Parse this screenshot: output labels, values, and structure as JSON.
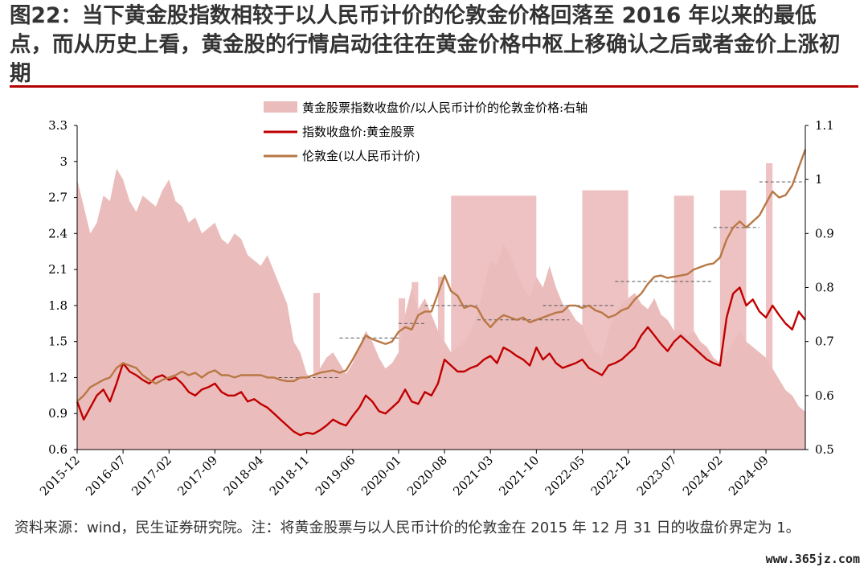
{
  "title": "图22：当下黄金股指数相较于以人民币计价的伦敦金价格回落至 2016 年以来的最低点，而从历史上看，黄金股的行情启动往往在黄金价格中枢上移确认之后或者金价上涨初期",
  "source_note": "资料来源：wind，民生证券研究院。注：将黄金股票与以人民币计价的伦敦金在 2015 年 12 月 31 日的收盘价界定为 1。",
  "watermark": "www.365jz.com",
  "colors": {
    "ratio_area": "#ebbcbc",
    "highlight": "#d97878",
    "index_line": "#c00000",
    "gold_line": "#b87845",
    "dashed": "#555555"
  },
  "chart_data": {
    "type": "line",
    "x_ticks": [
      "2015-12",
      "2016-07",
      "2017-02",
      "2017-09",
      "2018-04",
      "2018-11",
      "2019-06",
      "2020-01",
      "2020-08",
      "2021-03",
      "2021-10",
      "2022-05",
      "2022-12",
      "2023-07",
      "2024-02",
      "2024-09"
    ],
    "y_left": {
      "ticks": [
        "3.3",
        "3",
        "2.7",
        "2.4",
        "2.1",
        "1.8",
        "1.5",
        "1.2",
        "0.9",
        "0.6"
      ],
      "range": [
        0.6,
        3.3
      ]
    },
    "y_right": {
      "ticks": [
        "1.1",
        "1",
        "0.9",
        "0.8",
        "0.7",
        "0.6",
        "0.5"
      ],
      "range": [
        0.5,
        1.1
      ]
    },
    "legend": [
      "黄金股票指数收盘价/以人民币计价的伦敦金价格:右轴",
      "指数收盘价:黄金股票",
      "伦敦金(以人民币计价)"
    ],
    "series": [
      {
        "name": "黄金股票指数收盘价/以人民币计价的伦敦金价格:右轴",
        "axis": "right",
        "kind": "area",
        "x": [
          "2015-12",
          "2016-01",
          "2016-02",
          "2016-03",
          "2016-04",
          "2016-05",
          "2016-06",
          "2016-07",
          "2016-08",
          "2016-09",
          "2016-10",
          "2016-11",
          "2016-12",
          "2017-01",
          "2017-02",
          "2017-03",
          "2017-04",
          "2017-05",
          "2017-06",
          "2017-07",
          "2017-08",
          "2017-09",
          "2017-10",
          "2017-11",
          "2017-12",
          "2018-01",
          "2018-02",
          "2018-03",
          "2018-04",
          "2018-05",
          "2018-06",
          "2018-07",
          "2018-08",
          "2018-09",
          "2018-10",
          "2018-11",
          "2018-12",
          "2019-01",
          "2019-02",
          "2019-03",
          "2019-04",
          "2019-05",
          "2019-06",
          "2019-07",
          "2019-08",
          "2019-09",
          "2019-10",
          "2019-11",
          "2019-12",
          "2020-01",
          "2020-02",
          "2020-03",
          "2020-04",
          "2020-05",
          "2020-06",
          "2020-07",
          "2020-08",
          "2020-09",
          "2020-10",
          "2020-11",
          "2020-12",
          "2021-01",
          "2021-02",
          "2021-03",
          "2021-04",
          "2021-05",
          "2021-06",
          "2021-07",
          "2021-08",
          "2021-09",
          "2021-10",
          "2021-11",
          "2021-12",
          "2022-01",
          "2022-02",
          "2022-03",
          "2022-04",
          "2022-05",
          "2022-06",
          "2022-07",
          "2022-08",
          "2022-09",
          "2022-10",
          "2022-11",
          "2022-12",
          "2023-01",
          "2023-02",
          "2023-03",
          "2023-04",
          "2023-05",
          "2023-06",
          "2023-07",
          "2023-08",
          "2023-09",
          "2023-10",
          "2023-11",
          "2023-12",
          "2024-01",
          "2024-02",
          "2024-03",
          "2024-04",
          "2024-05",
          "2024-06",
          "2024-07",
          "2024-08",
          "2024-09",
          "2024-10",
          "2024-11",
          "2024-12",
          "2025-01",
          "2025-02",
          "2025-03"
        ],
        "values": [
          1.0,
          0.95,
          0.9,
          0.92,
          0.97,
          0.96,
          1.02,
          1.0,
          0.96,
          0.94,
          0.97,
          0.96,
          0.95,
          0.98,
          1.0,
          0.96,
          0.95,
          0.92,
          0.93,
          0.9,
          0.91,
          0.92,
          0.89,
          0.88,
          0.9,
          0.89,
          0.86,
          0.85,
          0.84,
          0.86,
          0.83,
          0.8,
          0.77,
          0.7,
          0.68,
          0.64,
          0.63,
          0.65,
          0.67,
          0.68,
          0.66,
          0.64,
          0.66,
          0.69,
          0.72,
          0.7,
          0.67,
          0.65,
          0.66,
          0.68,
          0.75,
          0.8,
          0.76,
          0.78,
          0.75,
          0.72,
          0.7,
          0.68,
          0.69,
          0.7,
          0.72,
          0.75,
          0.8,
          0.85,
          0.84,
          0.88,
          0.86,
          0.83,
          0.8,
          0.78,
          0.82,
          0.8,
          0.84,
          0.8,
          0.77,
          0.76,
          0.74,
          0.73,
          0.7,
          0.68,
          0.67,
          0.72,
          0.75,
          0.77,
          0.78,
          0.79,
          0.77,
          0.76,
          0.78,
          0.75,
          0.74,
          0.72,
          0.72,
          0.71,
          0.72,
          0.7,
          0.69,
          0.67,
          0.66,
          0.68,
          0.7,
          0.72,
          0.7,
          0.69,
          0.68,
          0.67,
          0.65,
          0.63,
          0.61,
          0.6,
          0.58,
          0.57
        ]
      },
      {
        "name": "指数收盘价:黄金股票",
        "axis": "left",
        "kind": "line",
        "x": [
          "2015-12",
          "2016-01",
          "2016-02",
          "2016-03",
          "2016-04",
          "2016-05",
          "2016-06",
          "2016-07",
          "2016-08",
          "2016-09",
          "2016-10",
          "2016-11",
          "2016-12",
          "2017-01",
          "2017-02",
          "2017-03",
          "2017-04",
          "2017-05",
          "2017-06",
          "2017-07",
          "2017-08",
          "2017-09",
          "2017-10",
          "2017-11",
          "2017-12",
          "2018-01",
          "2018-02",
          "2018-03",
          "2018-04",
          "2018-05",
          "2018-06",
          "2018-07",
          "2018-08",
          "2018-09",
          "2018-10",
          "2018-11",
          "2018-12",
          "2019-01",
          "2019-02",
          "2019-03",
          "2019-04",
          "2019-05",
          "2019-06",
          "2019-07",
          "2019-08",
          "2019-09",
          "2019-10",
          "2019-11",
          "2019-12",
          "2020-01",
          "2020-02",
          "2020-03",
          "2020-04",
          "2020-05",
          "2020-06",
          "2020-07",
          "2020-08",
          "2020-09",
          "2020-10",
          "2020-11",
          "2020-12",
          "2021-01",
          "2021-02",
          "2021-03",
          "2021-04",
          "2021-05",
          "2021-06",
          "2021-07",
          "2021-08",
          "2021-09",
          "2021-10",
          "2021-11",
          "2021-12",
          "2022-01",
          "2022-02",
          "2022-03",
          "2022-04",
          "2022-05",
          "2022-06",
          "2022-07",
          "2022-08",
          "2022-09",
          "2022-10",
          "2022-11",
          "2022-12",
          "2023-01",
          "2023-02",
          "2023-03",
          "2023-04",
          "2023-05",
          "2023-06",
          "2023-07",
          "2023-08",
          "2023-09",
          "2023-10",
          "2023-11",
          "2023-12",
          "2024-01",
          "2024-02",
          "2024-03",
          "2024-04",
          "2024-05",
          "2024-06",
          "2024-07",
          "2024-08",
          "2024-09",
          "2024-10",
          "2024-11",
          "2024-12",
          "2025-01",
          "2025-02",
          "2025-03"
        ],
        "values": [
          1.0,
          0.85,
          0.95,
          1.05,
          1.1,
          1.0,
          1.15,
          1.32,
          1.25,
          1.22,
          1.18,
          1.15,
          1.2,
          1.22,
          1.18,
          1.2,
          1.15,
          1.08,
          1.05,
          1.1,
          1.12,
          1.15,
          1.08,
          1.05,
          1.05,
          1.08,
          1.0,
          1.02,
          0.98,
          0.95,
          0.9,
          0.85,
          0.8,
          0.75,
          0.72,
          0.74,
          0.73,
          0.76,
          0.8,
          0.85,
          0.82,
          0.8,
          0.88,
          0.95,
          1.05,
          1.0,
          0.92,
          0.9,
          0.95,
          1.0,
          1.1,
          1.0,
          0.98,
          1.08,
          1.05,
          1.15,
          1.35,
          1.3,
          1.25,
          1.25,
          1.28,
          1.3,
          1.35,
          1.38,
          1.32,
          1.45,
          1.42,
          1.38,
          1.35,
          1.3,
          1.45,
          1.35,
          1.4,
          1.32,
          1.28,
          1.3,
          1.32,
          1.35,
          1.28,
          1.25,
          1.22,
          1.3,
          1.32,
          1.35,
          1.4,
          1.45,
          1.55,
          1.62,
          1.55,
          1.48,
          1.42,
          1.5,
          1.55,
          1.5,
          1.45,
          1.4,
          1.35,
          1.32,
          1.3,
          1.7,
          1.9,
          1.95,
          1.8,
          1.85,
          1.75,
          1.7,
          1.8,
          1.72,
          1.65,
          1.6,
          1.75,
          1.68
        ]
      },
      {
        "name": "伦敦金(以人民币计价)",
        "axis": "left",
        "kind": "line",
        "x": [
          "2015-12",
          "2016-01",
          "2016-02",
          "2016-03",
          "2016-04",
          "2016-05",
          "2016-06",
          "2016-07",
          "2016-08",
          "2016-09",
          "2016-10",
          "2016-11",
          "2016-12",
          "2017-01",
          "2017-02",
          "2017-03",
          "2017-04",
          "2017-05",
          "2017-06",
          "2017-07",
          "2017-08",
          "2017-09",
          "2017-10",
          "2017-11",
          "2017-12",
          "2018-01",
          "2018-02",
          "2018-03",
          "2018-04",
          "2018-05",
          "2018-06",
          "2018-07",
          "2018-08",
          "2018-09",
          "2018-10",
          "2018-11",
          "2018-12",
          "2019-01",
          "2019-02",
          "2019-03",
          "2019-04",
          "2019-05",
          "2019-06",
          "2019-07",
          "2019-08",
          "2019-09",
          "2019-10",
          "2019-11",
          "2019-12",
          "2020-01",
          "2020-02",
          "2020-03",
          "2020-04",
          "2020-05",
          "2020-06",
          "2020-07",
          "2020-08",
          "2020-09",
          "2020-10",
          "2020-11",
          "2020-12",
          "2021-01",
          "2021-02",
          "2021-03",
          "2021-04",
          "2021-05",
          "2021-06",
          "2021-07",
          "2021-08",
          "2021-09",
          "2021-10",
          "2021-11",
          "2021-12",
          "2022-01",
          "2022-02",
          "2022-03",
          "2022-04",
          "2022-05",
          "2022-06",
          "2022-07",
          "2022-08",
          "2022-09",
          "2022-10",
          "2022-11",
          "2022-12",
          "2023-01",
          "2023-02",
          "2023-03",
          "2023-04",
          "2023-05",
          "2023-06",
          "2023-07",
          "2023-08",
          "2023-09",
          "2023-10",
          "2023-11",
          "2023-12",
          "2024-01",
          "2024-02",
          "2024-03",
          "2024-04",
          "2024-05",
          "2024-06",
          "2024-07",
          "2024-08",
          "2024-09",
          "2024-10",
          "2024-11",
          "2024-12",
          "2025-01",
          "2025-02",
          "2025-03"
        ],
        "values": [
          1.0,
          1.05,
          1.12,
          1.15,
          1.18,
          1.2,
          1.28,
          1.32,
          1.3,
          1.28,
          1.22,
          1.18,
          1.15,
          1.18,
          1.2,
          1.22,
          1.25,
          1.22,
          1.24,
          1.2,
          1.24,
          1.26,
          1.22,
          1.22,
          1.2,
          1.22,
          1.22,
          1.22,
          1.22,
          1.2,
          1.2,
          1.18,
          1.17,
          1.17,
          1.2,
          1.2,
          1.22,
          1.24,
          1.25,
          1.26,
          1.24,
          1.26,
          1.35,
          1.45,
          1.55,
          1.52,
          1.5,
          1.48,
          1.5,
          1.58,
          1.62,
          1.6,
          1.72,
          1.75,
          1.75,
          1.9,
          2.05,
          1.92,
          1.88,
          1.78,
          1.8,
          1.78,
          1.68,
          1.62,
          1.68,
          1.72,
          1.7,
          1.68,
          1.7,
          1.66,
          1.68,
          1.7,
          1.72,
          1.74,
          1.75,
          1.8,
          1.8,
          1.78,
          1.8,
          1.76,
          1.74,
          1.7,
          1.72,
          1.76,
          1.78,
          1.85,
          1.9,
          1.98,
          2.04,
          2.05,
          2.03,
          2.04,
          2.05,
          2.06,
          2.1,
          2.12,
          2.14,
          2.15,
          2.2,
          2.35,
          2.45,
          2.5,
          2.45,
          2.5,
          2.55,
          2.65,
          2.75,
          2.7,
          2.72,
          2.8,
          2.95,
          3.1
        ]
      }
    ],
    "highlight_bands": [
      {
        "from": "2018-12",
        "to": "2019-01",
        "y_from": 0.5,
        "y_to": 0.79
      },
      {
        "from": "2020-01",
        "to": "2020-02",
        "y_from": 0.53,
        "y_to": 0.78
      },
      {
        "from": "2020-03",
        "to": "2020-04",
        "y_from": 0.56,
        "y_to": 0.81
      },
      {
        "from": "2020-07",
        "to": "2020-08",
        "y_from": 0.55,
        "y_to": 0.82
      },
      {
        "from": "2020-09",
        "to": "2021-10",
        "y_from": 0.59,
        "y_to": 0.97
      },
      {
        "from": "2022-05",
        "to": "2022-12",
        "y_from": 0.6,
        "y_to": 0.98
      },
      {
        "from": "2023-07",
        "to": "2023-10",
        "y_from": 0.59,
        "y_to": 0.97
      },
      {
        "from": "2024-02",
        "to": "2024-06",
        "y_from": 0.6,
        "y_to": 0.98
      },
      {
        "from": "2024-09",
        "to": "2024-10",
        "y_from": 0.59,
        "y_to": 1.03
      }
    ],
    "level_lines": [
      {
        "from": "2018-05",
        "to": "2019-04",
        "y": 1.2
      },
      {
        "from": "2019-04",
        "to": "2020-01",
        "y": 1.53
      },
      {
        "from": "2020-01",
        "to": "2020-05",
        "y": 1.65
      },
      {
        "from": "2020-05",
        "to": "2021-01",
        "y": 1.8
      },
      {
        "from": "2021-01",
        "to": "2022-03",
        "y": 1.68
      },
      {
        "from": "2021-11",
        "to": "2022-10",
        "y": 1.8
      },
      {
        "from": "2022-10",
        "to": "2023-07",
        "y": 2.0
      },
      {
        "from": "2023-07",
        "to": "2024-01",
        "y": 2.0
      },
      {
        "from": "2024-01",
        "to": "2024-08",
        "y": 2.45
      },
      {
        "from": "2024-08",
        "to": "2025-03",
        "y": 2.83
      }
    ]
  }
}
